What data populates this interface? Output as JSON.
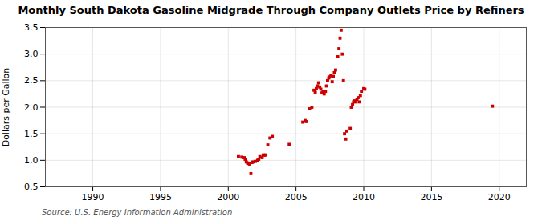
{
  "chart_data": {
    "type": "scatter",
    "title": "Monthly South Dakota Gasoline Midgrade Through Company Outlets Price by Refiners",
    "ylabel": "Dollars per Gallon",
    "source": "Source: U.S. Energy Information Administration",
    "x": [
      2000.75,
      2001.0,
      2001.17,
      2001.25,
      2001.33,
      2001.42,
      2001.5,
      2001.58,
      2001.67,
      2001.75,
      2001.83,
      2002.0,
      2002.17,
      2002.25,
      2002.33,
      2002.5,
      2002.58,
      2002.67,
      2002.75,
      2002.92,
      2003.08,
      2003.25,
      2004.5,
      2005.5,
      2005.67,
      2005.75,
      2006.0,
      2006.17,
      2006.33,
      2006.42,
      2006.5,
      2006.58,
      2006.67,
      2006.75,
      2006.83,
      2006.92,
      2007.0,
      2007.08,
      2007.17,
      2007.25,
      2007.33,
      2007.42,
      2007.5,
      2007.58,
      2007.67,
      2007.75,
      2007.83,
      2007.92,
      2008.08,
      2008.17,
      2008.25,
      2008.33,
      2008.42,
      2008.5,
      2008.58,
      2008.67,
      2008.75,
      2009.0,
      2009.08,
      2009.17,
      2009.25,
      2009.33,
      2009.42,
      2009.5,
      2009.58,
      2009.67,
      2009.75,
      2009.83,
      2010.0,
      2010.08,
      2019.5
    ],
    "values": [
      1.07,
      1.06,
      1.05,
      1.02,
      0.97,
      0.95,
      0.94,
      0.93,
      0.75,
      0.96,
      0.97,
      0.98,
      1.0,
      1.02,
      1.07,
      1.05,
      1.1,
      1.1,
      1.1,
      1.29,
      1.42,
      1.45,
      1.3,
      1.72,
      1.75,
      1.73,
      1.97,
      2.0,
      2.32,
      2.28,
      2.35,
      2.4,
      2.46,
      2.38,
      2.34,
      2.27,
      2.3,
      2.25,
      2.3,
      2.4,
      2.5,
      2.55,
      2.57,
      2.6,
      2.48,
      2.58,
      2.65,
      2.7,
      2.95,
      3.1,
      3.3,
      3.45,
      3.0,
      2.5,
      1.5,
      1.4,
      1.55,
      1.6,
      2.0,
      2.05,
      2.1,
      2.12,
      2.1,
      2.15,
      2.18,
      2.1,
      2.22,
      2.3,
      2.35,
      2.34,
      2.02
    ],
    "color": "#cc0000",
    "marker": "square",
    "xlim": [
      1986.5,
      2022
    ],
    "ylim": [
      0.5,
      3.5
    ],
    "xticks": [
      1990,
      1995,
      2000,
      2005,
      2010,
      2015,
      2020
    ],
    "yticks": [
      0.5,
      {
        "value": 1.0,
        "label": "1.0"
      },
      1.5,
      {
        "value": 2.0,
        "label": "2.0"
      },
      2.5,
      {
        "value": 3.0,
        "label": "3.0"
      },
      3.5
    ],
    "grid": true
  }
}
